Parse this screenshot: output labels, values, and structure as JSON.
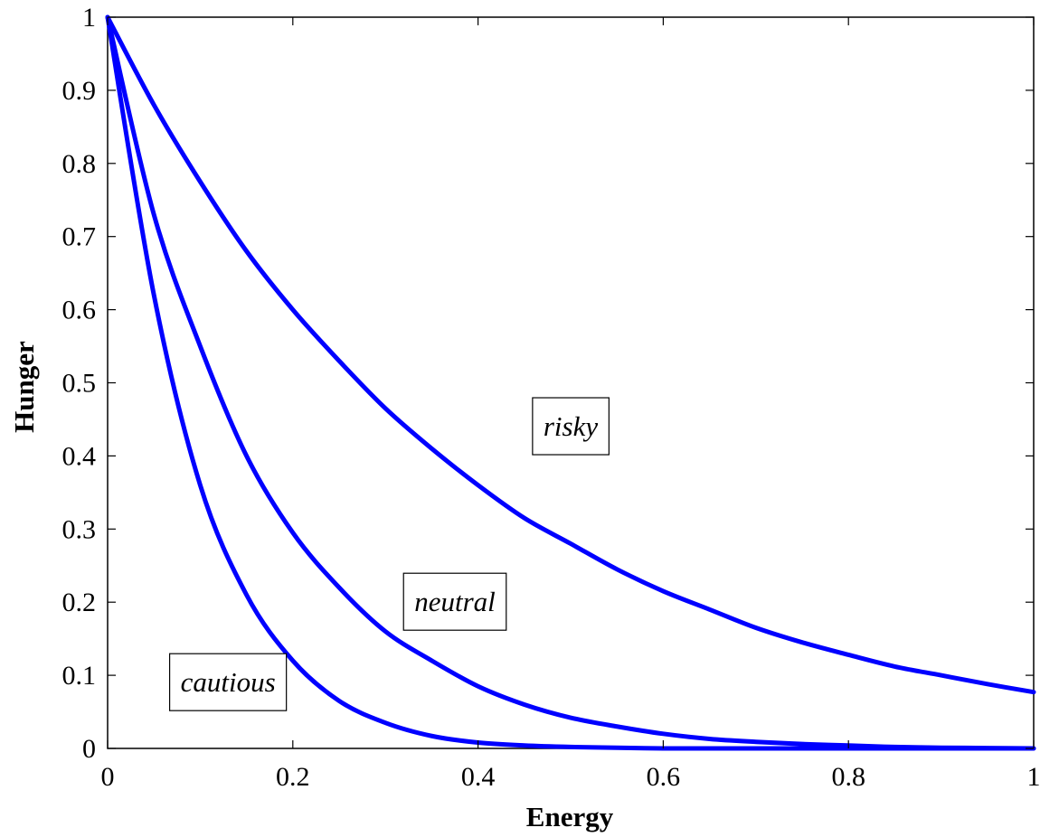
{
  "chart_data": {
    "type": "line",
    "xlabel": "Energy",
    "ylabel": "Hunger",
    "xlim": [
      0,
      1
    ],
    "ylim": [
      0,
      1
    ],
    "x_ticks": [
      "0",
      "0.2",
      "0.4",
      "0.6",
      "0.8",
      "1"
    ],
    "y_ticks": [
      "0",
      "0.1",
      "0.2",
      "0.3",
      "0.4",
      "0.5",
      "0.6",
      "0.7",
      "0.8",
      "0.9",
      "1"
    ],
    "grid": false,
    "line_color": "#0000ff",
    "x": [
      0,
      0.05,
      0.1,
      0.15,
      0.2,
      0.25,
      0.3,
      0.35,
      0.4,
      0.45,
      0.5,
      0.55,
      0.6,
      0.65,
      0.7,
      0.75,
      0.8,
      0.85,
      0.9,
      0.95,
      1.0
    ],
    "series": [
      {
        "values": [
          1.0,
          0.88,
          0.775,
          0.68,
          0.6,
          0.53,
          0.465,
          0.41,
          0.36,
          0.315,
          0.28,
          0.245,
          0.215,
          0.19,
          0.165,
          0.145,
          0.128,
          0.112,
          0.1,
          0.088,
          0.077
        ]
      },
      {
        "values": [
          1.0,
          0.73,
          0.55,
          0.4,
          0.295,
          0.22,
          0.16,
          0.12,
          0.085,
          0.06,
          0.042,
          0.03,
          0.02,
          0.013,
          0.009,
          0.006,
          0.004,
          0.002,
          0.001,
          0.0005,
          0.0
        ]
      },
      {
        "values": [
          1.0,
          0.62,
          0.36,
          0.21,
          0.12,
          0.065,
          0.035,
          0.017,
          0.008,
          0.004,
          0.002,
          0.001,
          0.0,
          0.0,
          0.0,
          0.0,
          0.0,
          0.0,
          0.0,
          0.0,
          0.0
        ]
      }
    ],
    "annotations": [
      {
        "text": "risky",
        "x": 0.5,
        "y": 0.44
      },
      {
        "text": "neutral",
        "x": 0.375,
        "y": 0.2
      },
      {
        "text": "cautious",
        "x": 0.13,
        "y": 0.09
      }
    ]
  }
}
